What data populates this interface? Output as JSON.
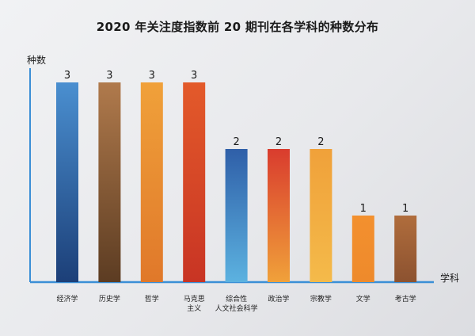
{
  "chart_data": {
    "type": "bar",
    "title": "2020 年关注度指数前 20 期刊在各学科的种数分布",
    "ylabel": "种数",
    "xlabel": "学科",
    "ylim": [
      0,
      3.6
    ],
    "categories": [
      [
        "经济学"
      ],
      [
        "历史学"
      ],
      [
        "哲学"
      ],
      [
        "马克思",
        "主义"
      ],
      [
        "综合性",
        "人文社会科学"
      ],
      [
        "政治学"
      ],
      [
        "宗教学"
      ],
      [
        "文学"
      ],
      [
        "考古学"
      ]
    ],
    "values": [
      3,
      3,
      3,
      3,
      2,
      2,
      2,
      1,
      1
    ],
    "bar_colors": [
      [
        "#4a8fd0",
        "#1c3f78"
      ],
      [
        "#b07a4c",
        "#5c3c22"
      ],
      [
        "#f0a13a",
        "#e0782a"
      ],
      [
        "#e35a2a",
        "#c83424"
      ],
      [
        "#2f5fa8",
        "#5cb2e0"
      ],
      [
        "#d93c2e",
        "#f0a13a"
      ],
      [
        "#f0a13a",
        "#f4ba4a"
      ],
      [
        "#f3902e",
        "#ee8a2c"
      ],
      [
        "#b06d3c",
        "#8c5230"
      ]
    ],
    "axis_color": "#3b8fd6"
  }
}
